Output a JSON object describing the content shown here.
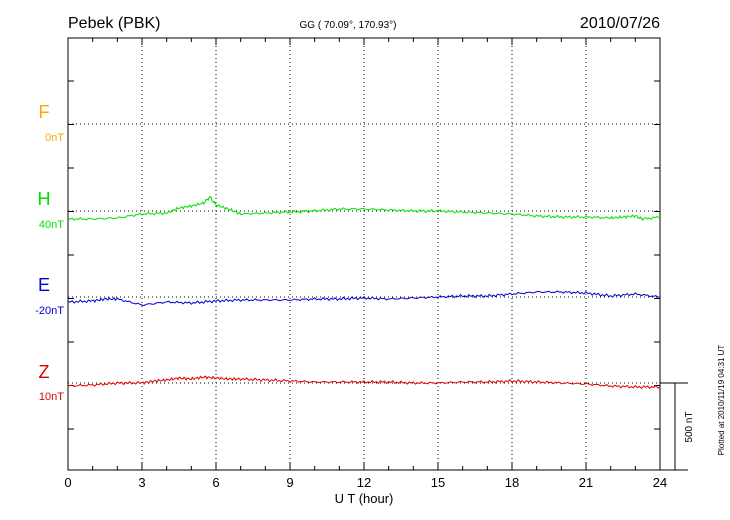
{
  "header": {
    "station": "Pebek (PBK)",
    "coords": "GG ( 70.09°, 170.93°)",
    "date": "2010/07/26"
  },
  "footer": {
    "plotted": "Plotted at 2010/11/19 04:31  UT"
  },
  "chart_data": {
    "type": "line",
    "xlabel": "U T (hour)",
    "xlim": [
      0,
      24
    ],
    "xticks": [
      0,
      3,
      6,
      9,
      12,
      15,
      18,
      21,
      24
    ],
    "grid": true,
    "scale_bar_label": "500 nT",
    "series": [
      {
        "name": "F",
        "offset_label": "0nT",
        "color": "#ffa500",
        "x": [],
        "y": []
      },
      {
        "name": "H",
        "offset_label": "40nT",
        "color": "#00e000",
        "x": [
          0,
          1,
          2,
          3,
          4,
          4.5,
          5,
          5.5,
          5.75,
          6,
          6.5,
          7,
          8,
          9,
          10,
          11,
          12,
          13,
          14,
          15,
          16,
          17,
          18,
          19,
          20,
          21,
          22,
          22.5,
          23,
          23.3,
          24
        ],
        "y": [
          -8,
          -8,
          -7,
          -3,
          -2,
          3,
          5,
          8,
          14,
          6,
          2,
          -3,
          -2,
          -1,
          0,
          2,
          2,
          1,
          0,
          0,
          -1,
          -2,
          -3,
          -5,
          -6,
          -6,
          -7,
          -6,
          -5,
          -8,
          -6
        ]
      },
      {
        "name": "E",
        "offset_label": "-20nT",
        "color": "#0000cc",
        "x": [
          0,
          1,
          1.5,
          2,
          3,
          4,
          5,
          6,
          7,
          8,
          9,
          10,
          11,
          12,
          13,
          14,
          15,
          16,
          17,
          18,
          19,
          20,
          21,
          22,
          23,
          24
        ],
        "y": [
          -5,
          -4,
          -2,
          -2,
          -8,
          -5,
          -6,
          -4,
          -3,
          -3,
          -3,
          -2,
          -2,
          -1,
          -2,
          -1,
          0,
          1,
          1,
          3,
          5,
          5,
          4,
          1,
          3,
          0
        ]
      },
      {
        "name": "Z",
        "offset_label": "10nT",
        "color": "#dd0000",
        "x": [
          0,
          1,
          2,
          3,
          3.5,
          4,
          4.5,
          5,
          5.5,
          6,
          6.5,
          7,
          8,
          9,
          10,
          11,
          12,
          13,
          14,
          15,
          16,
          17,
          18,
          19,
          20,
          21,
          22,
          23,
          24
        ],
        "y": [
          -3,
          -2,
          0,
          0,
          2,
          3,
          5,
          4,
          6,
          5,
          4,
          4,
          3,
          2,
          1,
          1,
          1,
          1,
          0,
          0,
          1,
          1,
          2,
          1,
          0,
          -1,
          -3,
          -4,
          -4
        ]
      }
    ]
  }
}
